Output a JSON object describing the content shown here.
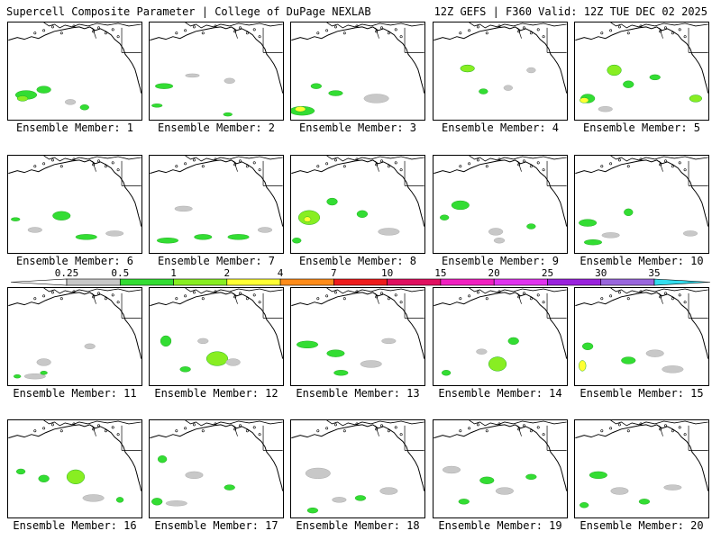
{
  "header": {
    "left": "Supercell Composite Parameter | College of DuPage NEXLAB",
    "right": "12Z GEFS | F360 Valid: 12Z TUE DEC 02 2025"
  },
  "panels": [
    {
      "label": "Ensemble Member: 1"
    },
    {
      "label": "Ensemble Member: 2"
    },
    {
      "label": "Ensemble Member: 3"
    },
    {
      "label": "Ensemble Member: 4"
    },
    {
      "label": "Ensemble Member: 5"
    },
    {
      "label": "Ensemble Member: 6"
    },
    {
      "label": "Ensemble Member: 7"
    },
    {
      "label": "Ensemble Member: 8"
    },
    {
      "label": "Ensemble Member: 9"
    },
    {
      "label": "Ensemble Member: 10"
    },
    {
      "label": "Ensemble Member: 11"
    },
    {
      "label": "Ensemble Member: 12"
    },
    {
      "label": "Ensemble Member: 13"
    },
    {
      "label": "Ensemble Member: 14"
    },
    {
      "label": "Ensemble Member: 15"
    },
    {
      "label": "Ensemble Member: 16"
    },
    {
      "label": "Ensemble Member: 17"
    },
    {
      "label": "Ensemble Member: 18"
    },
    {
      "label": "Ensemble Member: 19"
    },
    {
      "label": "Ensemble Member: 20"
    }
  ],
  "colorbar": {
    "ticks": [
      "0.25",
      "0.5",
      "1",
      "2",
      "4",
      "7",
      "10",
      "15",
      "20",
      "25",
      "30",
      "35"
    ],
    "colors": [
      "#c8c8c8",
      "#33dd33",
      "#88ee22",
      "#ffff33",
      "#ff8c1a",
      "#ee1c1c",
      "#e01060",
      "#f020c0",
      "#e033ee",
      "#9a22dd",
      "#9966dd",
      "#33ddee"
    ]
  }
}
